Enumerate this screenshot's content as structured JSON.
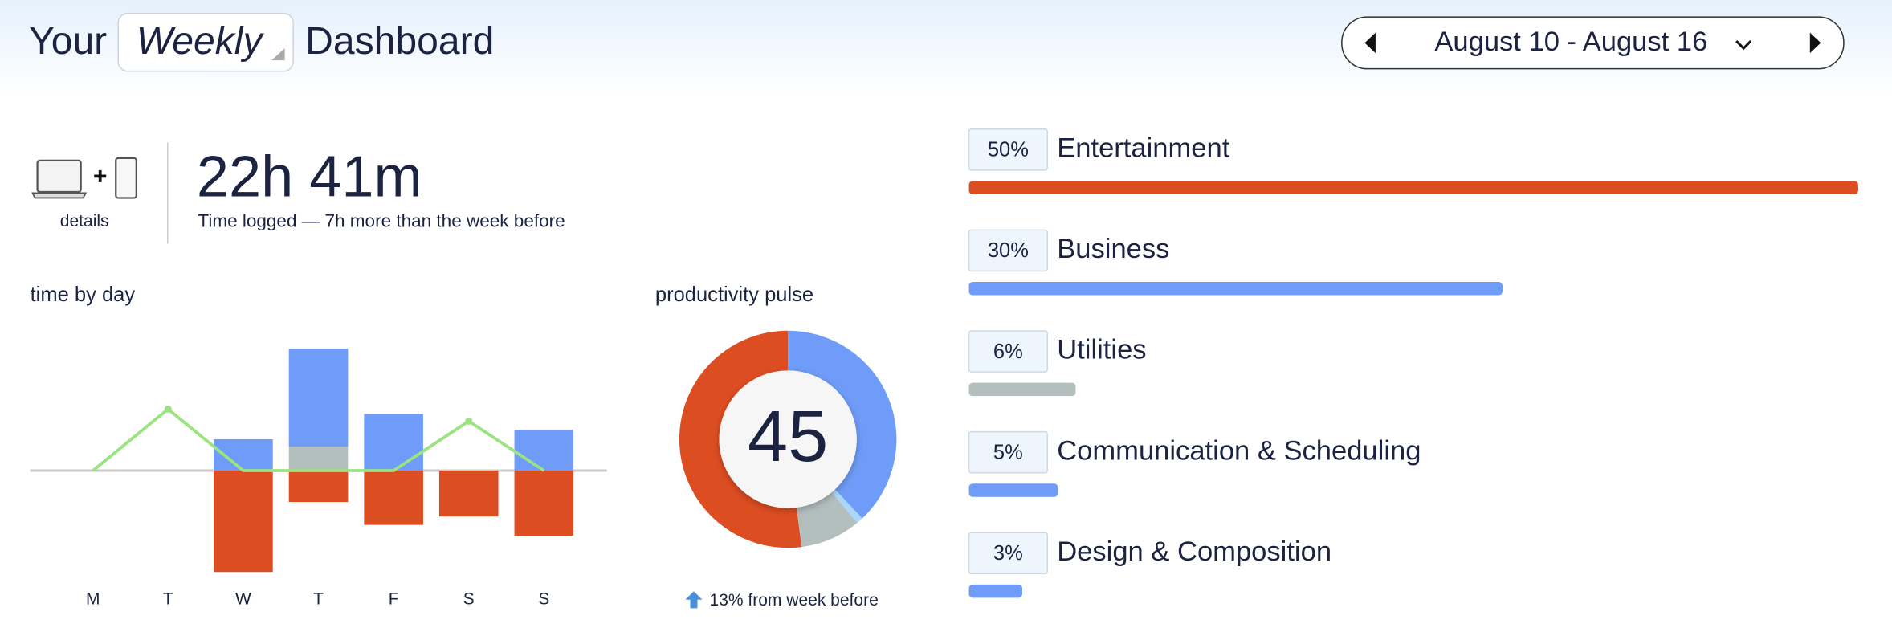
{
  "header": {
    "prefix": "Your",
    "period": "Weekly",
    "suffix": "Dashboard",
    "date_range": "August 10 - August 16"
  },
  "summary": {
    "details": "details",
    "total": "22h 41m",
    "caption": "Time logged — 7h more than the week before"
  },
  "chart_data": [
    {
      "type": "bar",
      "title": "time by day",
      "stacked": true,
      "categories": [
        "M",
        "T",
        "W",
        "T",
        "F",
        "S",
        "S"
      ],
      "ylim": [
        -10,
        12
      ],
      "series": [
        {
          "color": "#b3bfbd",
          "values": [
            0,
            0,
            0,
            2.0,
            0,
            0,
            0
          ]
        },
        {
          "color": "#6f9cf8",
          "values": [
            0,
            0,
            2.6,
            8.1,
            4.7,
            0,
            3.4
          ]
        },
        {
          "color": "#dd4d22",
          "values": [
            0,
            0,
            -8.4,
            -2.6,
            -4.5,
            -3.8,
            -5.4
          ]
        },
        {
          "type": "line",
          "color": "#9be37f",
          "values": [
            0,
            5.1,
            0,
            0,
            0,
            4.1,
            0
          ]
        }
      ]
    },
    {
      "type": "pie",
      "title": "productivity pulse",
      "donut": true,
      "score": 45,
      "values": [
        38,
        1,
        9,
        52
      ],
      "colors": [
        "#6f9cf8",
        "#a9d6fb",
        "#b3bfbd",
        "#dd4d22"
      ],
      "note": "13% from week before"
    },
    {
      "type": "hbar",
      "categories": [
        "Entertainment",
        "Business",
        "Utilities",
        "Communication & Scheduling",
        "Design & Composition"
      ],
      "values": [
        50,
        30,
        6,
        5,
        3
      ],
      "value_labels": [
        "50%",
        "30%",
        "6%",
        "5%",
        "3%"
      ],
      "colors": [
        "#dd4d22",
        "#6f9cf8",
        "#b3bfbd",
        "#6f9cf8",
        "#6f9cf8"
      ],
      "xlim": [
        0,
        50
      ]
    }
  ]
}
